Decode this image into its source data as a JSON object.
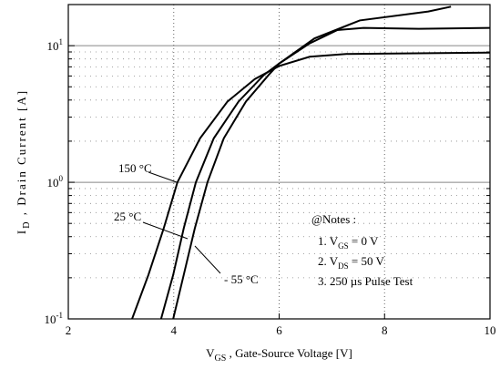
{
  "chart_data": {
    "type": "line",
    "xlabel": {
      "symbol": "V",
      "subscript": "GS",
      "text": " ,  Gate-Source Voltage  [V]"
    },
    "ylabel": {
      "symbol": "I",
      "subscript": "D",
      "text": " ,  Drain Current    [A]"
    },
    "xlim": [
      2,
      10
    ],
    "xticks": [
      2,
      4,
      6,
      8,
      10
    ],
    "ylim": [
      0.1,
      20
    ],
    "yticks": [
      {
        "value": 0.1,
        "label": "10",
        "exponent": "-1"
      },
      {
        "value": 1,
        "label": "10",
        "exponent": "0"
      },
      {
        "value": 10,
        "label": "10",
        "exponent": "1"
      }
    ],
    "log_y": true,
    "grid": true,
    "series": [
      {
        "name": "150 °C",
        "color": "#000000",
        "x": [
          3.21,
          3.52,
          3.81,
          4.07,
          4.5,
          5.02,
          5.54,
          6.0,
          6.58,
          7.27,
          10
        ],
        "values": [
          0.1,
          0.21,
          0.46,
          1,
          2.1,
          3.9,
          5.7,
          7.1,
          8.3,
          8.7,
          8.9
        ]
      },
      {
        "name": "25 °C",
        "color": "#000000",
        "x": [
          3.76,
          3.99,
          4.19,
          4.42,
          4.76,
          5.23,
          5.71,
          6.0,
          6.58,
          7.1,
          7.6,
          8.65,
          10
        ],
        "values": [
          0.1,
          0.21,
          0.46,
          1,
          2.1,
          3.9,
          6.1,
          7.4,
          10.4,
          13,
          13.5,
          13.3,
          13.5
        ]
      },
      {
        "name": "- 55 °C",
        "color": "#000000",
        "x": [
          3.99,
          4.19,
          4.4,
          4.64,
          4.95,
          5.37,
          5.8,
          6.0,
          6.67,
          7.53,
          8.83,
          9.26
        ],
        "values": [
          0.1,
          0.21,
          0.46,
          1,
          2.1,
          3.9,
          6.1,
          7.4,
          11.3,
          15.3,
          17.8,
          19.3
        ]
      }
    ],
    "notes": {
      "title": "@Notes :",
      "items": [
        {
          "prefix": "1.  V",
          "sub": "GS",
          "suffix": " = 0 V"
        },
        {
          "prefix": "2.  V",
          "sub": "DS",
          "suffix": " = 50 V"
        },
        {
          "prefix": "3.  250 µs Pulse Test"
        }
      ]
    }
  }
}
